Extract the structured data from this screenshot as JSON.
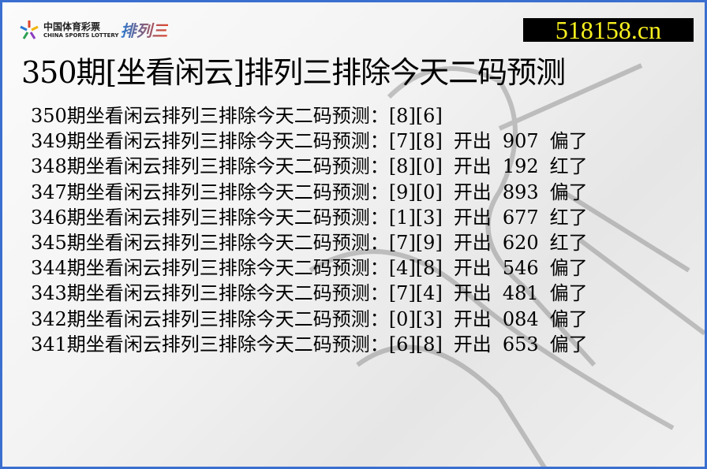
{
  "logo": {
    "cn": "中国体育彩票",
    "en": "CHINA SPORTS LOTTERY",
    "brand": "排列三"
  },
  "site": "518158.cn",
  "title": "350期[坐看闲云]排列三排除今天二码预测",
  "rows": [
    {
      "label": "350期坐看闲云排列三排除今天二码预测：",
      "pick": "[8][6]",
      "open_label": "",
      "result": "",
      "status": ""
    },
    {
      "label": "349期坐看闲云排列三排除今天二码预测：",
      "pick": "[7][8]",
      "open_label": "开出",
      "result": "907",
      "status": "偏了"
    },
    {
      "label": "348期坐看闲云排列三排除今天二码预测：",
      "pick": "[8][0]",
      "open_label": "开出",
      "result": "192",
      "status": "红了"
    },
    {
      "label": "347期坐看闲云排列三排除今天二码预测：",
      "pick": "[9][0]",
      "open_label": "开出",
      "result": "893",
      "status": "偏了"
    },
    {
      "label": "346期坐看闲云排列三排除今天二码预测：",
      "pick": "[1][3]",
      "open_label": "开出",
      "result": "677",
      "status": "红了"
    },
    {
      "label": "345期坐看闲云排列三排除今天二码预测：",
      "pick": "[7][9]",
      "open_label": "开出",
      "result": "620",
      "status": "红了"
    },
    {
      "label": "344期坐看闲云排列三排除今天二码预测：",
      "pick": "[4][8]",
      "open_label": "开出",
      "result": "546",
      "status": "偏了"
    },
    {
      "label": "343期坐看闲云排列三排除今天二码预测：",
      "pick": "[7][4]",
      "open_label": "开出",
      "result": "481",
      "status": "偏了"
    },
    {
      "label": "342期坐看闲云排列三排除今天二码预测：",
      "pick": "[0][3]",
      "open_label": "开出",
      "result": "084",
      "status": "偏了"
    },
    {
      "label": "341期坐看闲云排列三排除今天二码预测：",
      "pick": "[6][8]",
      "open_label": "开出",
      "result": "653",
      "status": "偏了"
    }
  ]
}
